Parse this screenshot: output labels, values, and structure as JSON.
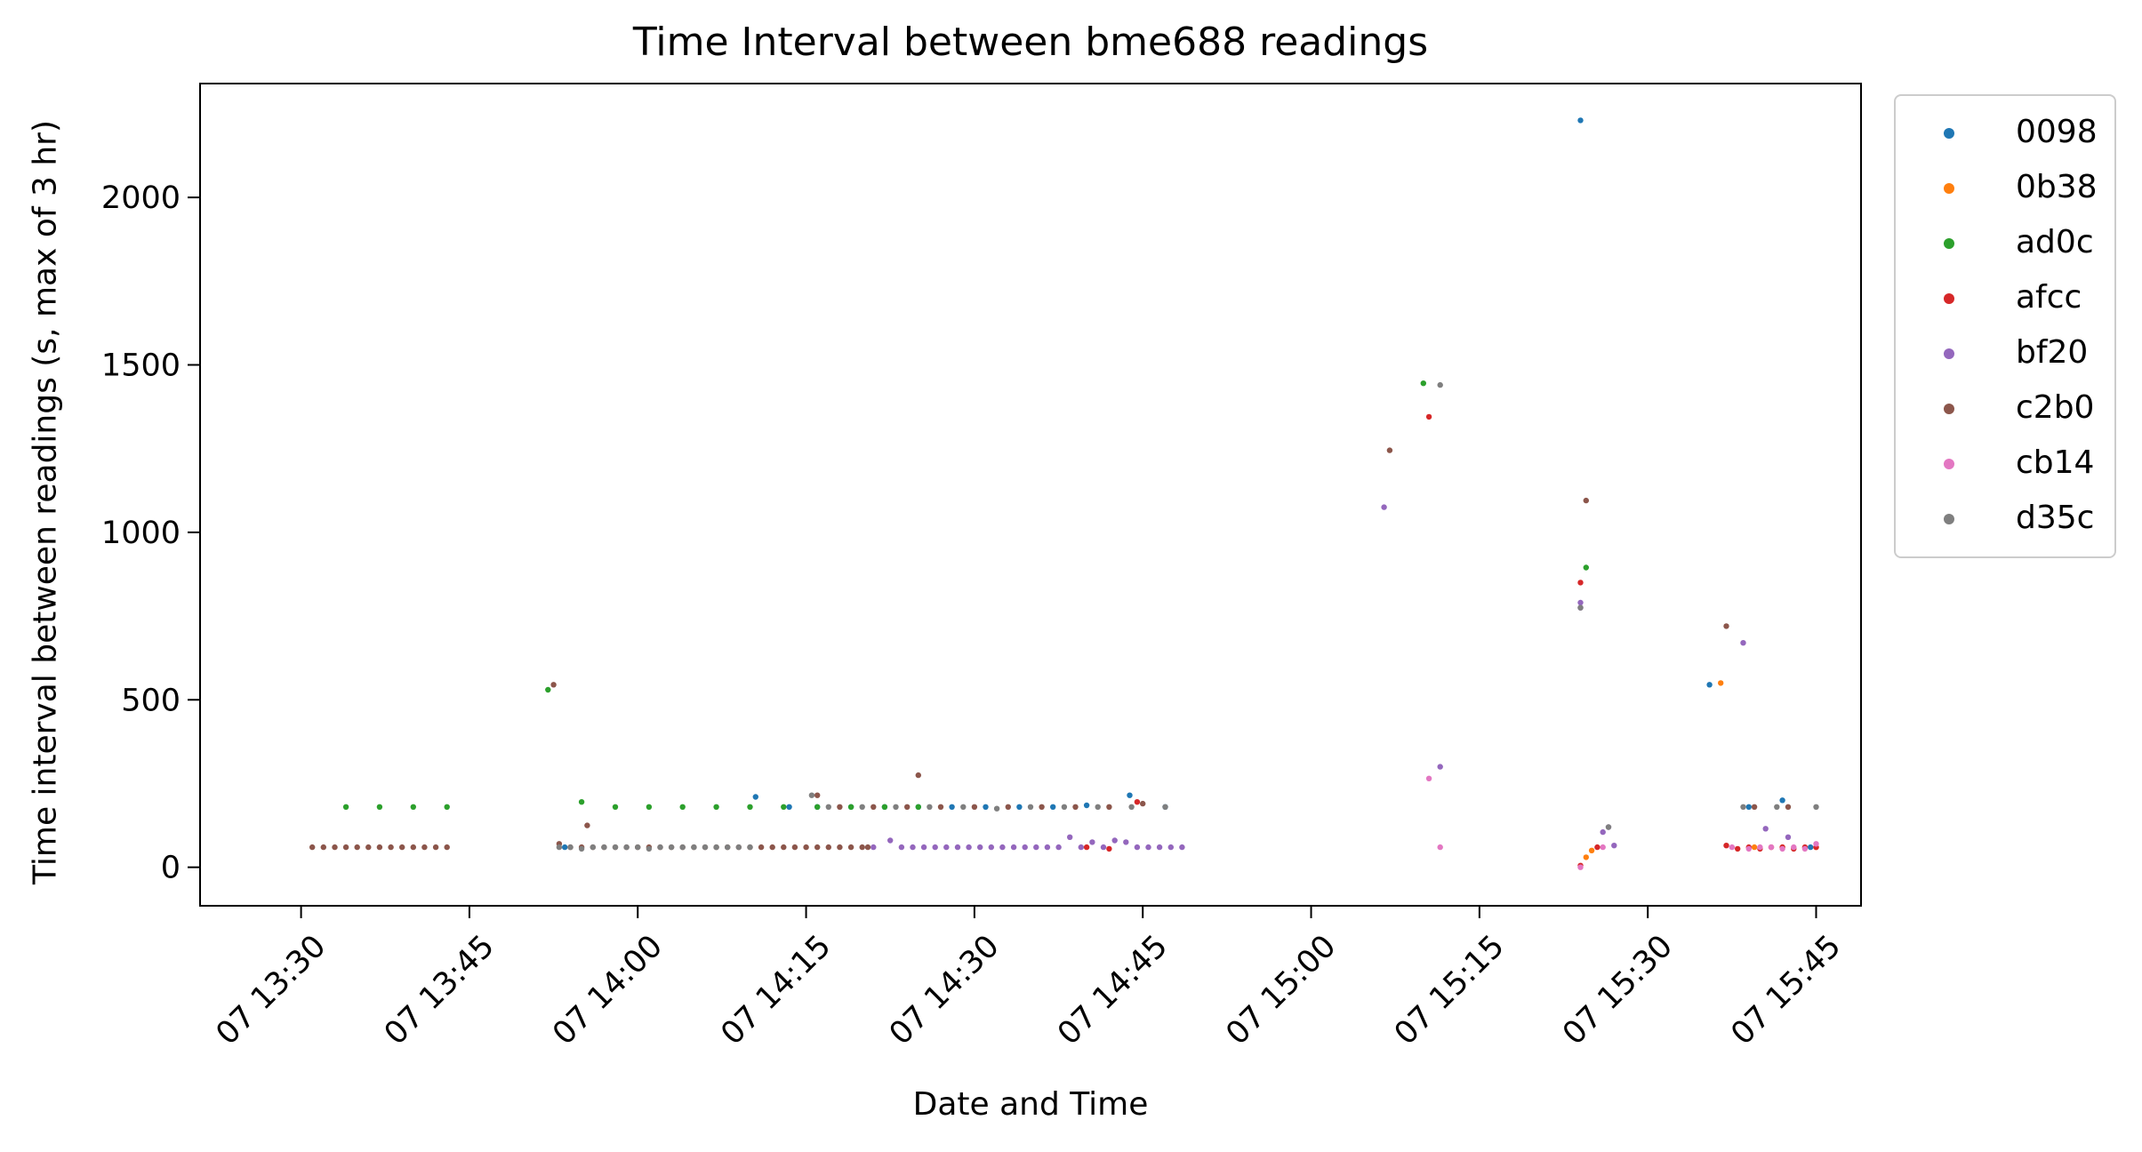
{
  "chart_data": {
    "type": "scatter",
    "title": "Time Interval between bme688 readings",
    "xlabel": "Date and Time",
    "ylabel": "Time interval between readings (s, max of 3 hr)",
    "x_axis": {
      "unit": "minutes",
      "min": "13:21",
      "max": "15:49",
      "ticks": [
        "13:30",
        "13:45",
        "14:00",
        "14:15",
        "14:30",
        "14:45",
        "15:00",
        "15:15",
        "15:30",
        "15:45"
      ],
      "tick_labels": [
        "07 13:30",
        "07 13:45",
        "07 14:00",
        "07 14:15",
        "07 14:30",
        "07 14:45",
        "07 15:00",
        "07 15:15",
        "07 15:30",
        "07 15:45"
      ]
    },
    "y_axis": {
      "min": -115,
      "max": 2340,
      "ticks": [
        0,
        500,
        1000,
        1500,
        2000
      ],
      "tick_labels": [
        "0",
        "500",
        "1000",
        "1500",
        "2000"
      ]
    },
    "grid": false,
    "legend_position": "outside-right-top",
    "series": [
      {
        "name": "0098",
        "color": "#1f77b4",
        "points": [
          [
            "13:53:30",
            60
          ],
          [
            "14:10:30",
            210
          ],
          [
            "14:13:30",
            180
          ],
          [
            "14:16:00",
            180
          ],
          [
            "14:19:00",
            180
          ],
          [
            "14:22:00",
            180
          ],
          [
            "14:25:00",
            180
          ],
          [
            "14:28:00",
            180
          ],
          [
            "14:31:00",
            180
          ],
          [
            "14:34:00",
            180
          ],
          [
            "14:37:00",
            180
          ],
          [
            "14:40:00",
            185
          ],
          [
            "14:43:50",
            215
          ],
          [
            "14:47:00",
            180
          ],
          [
            "15:24:00",
            2230
          ],
          [
            "15:35:30",
            545
          ],
          [
            "15:39:00",
            180
          ],
          [
            "15:42:00",
            200
          ],
          [
            "15:44:30",
            60
          ]
        ]
      },
      {
        "name": "0b38",
        "color": "#ff7f0e",
        "points": [
          [
            "15:24:30",
            30
          ],
          [
            "15:25:00",
            50
          ],
          [
            "15:36:30",
            550
          ],
          [
            "15:39:30",
            60
          ],
          [
            "15:42:00",
            60
          ],
          [
            "15:45:00",
            60
          ]
        ]
      },
      {
        "name": "ad0c",
        "color": "#2ca02c",
        "points": [
          [
            "13:34:00",
            180
          ],
          [
            "13:37:00",
            180
          ],
          [
            "13:40:00",
            180
          ],
          [
            "13:43:00",
            180
          ],
          [
            "13:52:00",
            530
          ],
          [
            "13:55:00",
            195
          ],
          [
            "13:58:00",
            180
          ],
          [
            "14:01:00",
            180
          ],
          [
            "14:04:00",
            180
          ],
          [
            "14:07:00",
            180
          ],
          [
            "14:10:00",
            180
          ],
          [
            "14:13:00",
            180
          ],
          [
            "14:16:00",
            180
          ],
          [
            "14:19:00",
            180
          ],
          [
            "14:22:00",
            180
          ],
          [
            "14:25:00",
            180
          ],
          [
            "15:10:00",
            1445
          ],
          [
            "15:24:30",
            895
          ]
        ]
      },
      {
        "name": "afcc",
        "color": "#d62728",
        "points": [
          [
            "14:40:00",
            60
          ],
          [
            "14:42:00",
            55
          ],
          [
            "14:44:30",
            195
          ],
          [
            "15:10:30",
            1345
          ],
          [
            "15:24:00",
            850
          ],
          [
            "15:24:00",
            5
          ],
          [
            "15:25:30",
            60
          ],
          [
            "15:37:00",
            65
          ],
          [
            "15:38:00",
            55
          ],
          [
            "15:39:00",
            60
          ],
          [
            "15:40:00",
            55
          ],
          [
            "15:41:00",
            60
          ],
          [
            "15:42:00",
            60
          ],
          [
            "15:43:00",
            55
          ],
          [
            "15:44:00",
            60
          ],
          [
            "15:45:00",
            60
          ]
        ]
      },
      {
        "name": "bf20",
        "color": "#9467bd",
        "points": [
          [
            "14:21:00",
            60
          ],
          [
            "14:22:30",
            80
          ],
          [
            "14:23:30",
            60
          ],
          [
            "14:24:30",
            60
          ],
          [
            "14:25:30",
            60
          ],
          [
            "14:26:30",
            60
          ],
          [
            "14:27:30",
            60
          ],
          [
            "14:28:30",
            60
          ],
          [
            "14:29:30",
            60
          ],
          [
            "14:30:30",
            60
          ],
          [
            "14:31:30",
            60
          ],
          [
            "14:32:30",
            60
          ],
          [
            "14:33:30",
            60
          ],
          [
            "14:34:30",
            60
          ],
          [
            "14:35:30",
            60
          ],
          [
            "14:36:30",
            60
          ],
          [
            "14:37:30",
            60
          ],
          [
            "14:38:30",
            90
          ],
          [
            "14:39:30",
            60
          ],
          [
            "14:40:30",
            75
          ],
          [
            "14:41:30",
            60
          ],
          [
            "14:42:30",
            80
          ],
          [
            "14:43:30",
            75
          ],
          [
            "14:44:30",
            60
          ],
          [
            "14:45:30",
            60
          ],
          [
            "14:46:30",
            60
          ],
          [
            "14:47:30",
            60
          ],
          [
            "14:48:30",
            60
          ],
          [
            "15:06:30",
            1075
          ],
          [
            "15:11:30",
            300
          ],
          [
            "15:24:00",
            790
          ],
          [
            "15:24:00",
            775
          ],
          [
            "15:26:00",
            105
          ],
          [
            "15:26:30",
            120
          ],
          [
            "15:27:00",
            65
          ],
          [
            "15:38:30",
            670
          ],
          [
            "15:40:30",
            115
          ],
          [
            "15:42:30",
            90
          ]
        ]
      },
      {
        "name": "c2b0",
        "color": "#8c564b",
        "points": [
          [
            "13:31:00",
            60
          ],
          [
            "13:32:00",
            60
          ],
          [
            "13:33:00",
            60
          ],
          [
            "13:34:00",
            60
          ],
          [
            "13:35:00",
            60
          ],
          [
            "13:36:00",
            60
          ],
          [
            "13:37:00",
            60
          ],
          [
            "13:38:00",
            60
          ],
          [
            "13:39:00",
            60
          ],
          [
            "13:40:00",
            60
          ],
          [
            "13:41:00",
            60
          ],
          [
            "13:42:00",
            60
          ],
          [
            "13:43:00",
            60
          ],
          [
            "13:52:30",
            545
          ],
          [
            "13:53:00",
            70
          ],
          [
            "13:54:00",
            60
          ],
          [
            "13:55:00",
            60
          ],
          [
            "13:55:30",
            125
          ],
          [
            "13:56:00",
            60
          ],
          [
            "13:57:00",
            60
          ],
          [
            "13:58:00",
            60
          ],
          [
            "13:59:00",
            60
          ],
          [
            "14:00:00",
            60
          ],
          [
            "14:01:00",
            60
          ],
          [
            "14:02:00",
            60
          ],
          [
            "14:03:00",
            60
          ],
          [
            "14:04:00",
            60
          ],
          [
            "14:05:00",
            60
          ],
          [
            "14:06:00",
            60
          ],
          [
            "14:07:00",
            60
          ],
          [
            "14:08:00",
            60
          ],
          [
            "14:09:00",
            60
          ],
          [
            "14:10:00",
            60
          ],
          [
            "14:11:00",
            60
          ],
          [
            "14:12:00",
            60
          ],
          [
            "14:13:00",
            60
          ],
          [
            "14:14:00",
            60
          ],
          [
            "14:15:00",
            60
          ],
          [
            "14:16:00",
            60
          ],
          [
            "14:17:00",
            60
          ],
          [
            "14:18:00",
            60
          ],
          [
            "14:19:00",
            60
          ],
          [
            "14:20:00",
            60
          ],
          [
            "14:20:30",
            60
          ],
          [
            "14:16:00",
            215
          ],
          [
            "14:18:00",
            180
          ],
          [
            "14:21:00",
            180
          ],
          [
            "14:24:00",
            180
          ],
          [
            "14:25:00",
            275
          ],
          [
            "14:27:00",
            180
          ],
          [
            "14:30:00",
            180
          ],
          [
            "14:33:00",
            180
          ],
          [
            "14:36:00",
            180
          ],
          [
            "14:39:00",
            180
          ],
          [
            "14:42:00",
            180
          ],
          [
            "14:45:00",
            190
          ],
          [
            "15:07:00",
            1245
          ],
          [
            "15:24:30",
            1095
          ],
          [
            "15:37:00",
            720
          ],
          [
            "15:39:30",
            180
          ],
          [
            "15:42:30",
            180
          ]
        ]
      },
      {
        "name": "cb14",
        "color": "#e377c2",
        "points": [
          [
            "15:10:30",
            265
          ],
          [
            "15:11:30",
            60
          ],
          [
            "15:24:00",
            0
          ],
          [
            "15:26:00",
            60
          ],
          [
            "15:37:30",
            60
          ],
          [
            "15:39:00",
            55
          ],
          [
            "15:40:00",
            60
          ],
          [
            "15:41:00",
            60
          ],
          [
            "15:42:00",
            55
          ],
          [
            "15:43:00",
            60
          ],
          [
            "15:44:00",
            55
          ],
          [
            "15:45:00",
            70
          ]
        ]
      },
      {
        "name": "d35c",
        "color": "#7f7f7f",
        "points": [
          [
            "13:53:00",
            60
          ],
          [
            "13:54:00",
            60
          ],
          [
            "13:55:00",
            55
          ],
          [
            "13:56:00",
            60
          ],
          [
            "13:57:00",
            60
          ],
          [
            "13:58:00",
            60
          ],
          [
            "13:59:00",
            60
          ],
          [
            "14:00:00",
            60
          ],
          [
            "14:01:00",
            55
          ],
          [
            "14:02:00",
            60
          ],
          [
            "14:03:00",
            60
          ],
          [
            "14:04:00",
            60
          ],
          [
            "14:05:00",
            60
          ],
          [
            "14:06:00",
            60
          ],
          [
            "14:07:00",
            60
          ],
          [
            "14:08:00",
            60
          ],
          [
            "14:09:00",
            60
          ],
          [
            "14:10:00",
            60
          ],
          [
            "14:15:30",
            215
          ],
          [
            "14:17:00",
            180
          ],
          [
            "14:20:00",
            180
          ],
          [
            "14:23:00",
            180
          ],
          [
            "14:26:00",
            180
          ],
          [
            "14:29:00",
            180
          ],
          [
            "14:32:00",
            175
          ],
          [
            "14:35:00",
            180
          ],
          [
            "14:38:00",
            180
          ],
          [
            "14:41:00",
            180
          ],
          [
            "14:44:00",
            180
          ],
          [
            "14:47:00",
            180
          ],
          [
            "15:11:30",
            1440
          ],
          [
            "15:24:00",
            775
          ],
          [
            "15:26:30",
            120
          ],
          [
            "15:38:30",
            180
          ],
          [
            "15:41:30",
            180
          ],
          [
            "15:45:00",
            180
          ]
        ]
      }
    ]
  }
}
